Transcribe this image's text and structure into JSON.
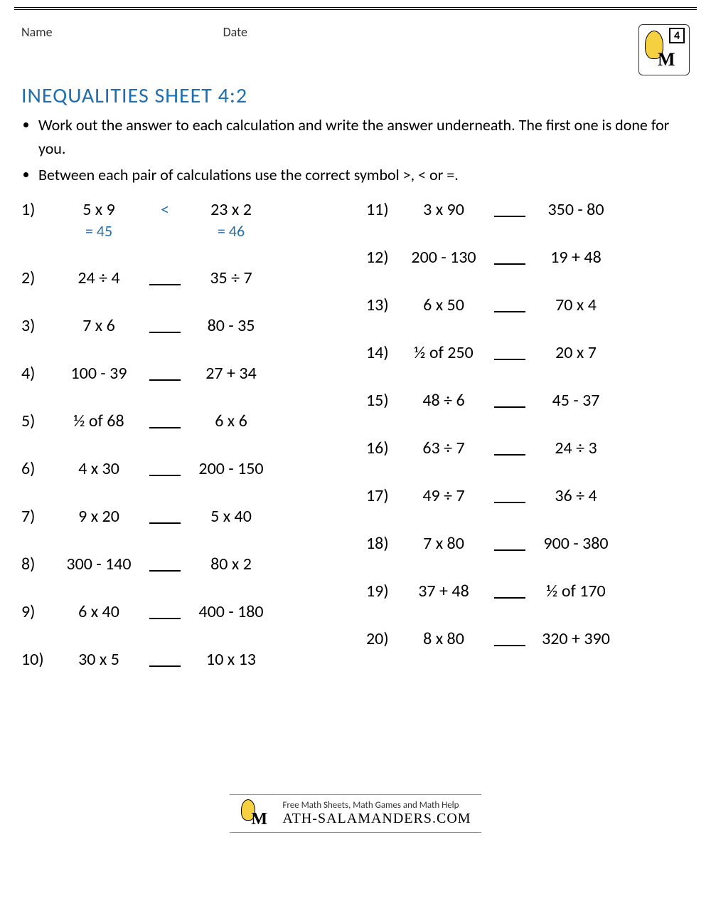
{
  "header": {
    "name_label": "Name",
    "date_label": "Date",
    "grade_badge": "4"
  },
  "title": "INEQUALITIES SHEET 4:2",
  "instructions": [
    "Work out the answer to each calculation and write the answer underneath.  The first one is done for you.",
    "Between each pair of calculations use the correct symbol >, < or =."
  ],
  "colors": {
    "title": "#1f6fb0",
    "answer": "#1f6fb0",
    "text": "#000000"
  },
  "problems_left": [
    {
      "n": "1)",
      "left": "5 x 9",
      "sym": "<",
      "right": "23 x 2",
      "ans_left": "= 45",
      "ans_right": "= 46"
    },
    {
      "n": "2)",
      "left": "24 ÷ 4",
      "sym": "",
      "right": "35 ÷ 7"
    },
    {
      "n": "3)",
      "left": "7 x 6",
      "sym": "",
      "right": "80 - 35"
    },
    {
      "n": "4)",
      "left": "100 - 39",
      "sym": "",
      "right": "27 + 34"
    },
    {
      "n": "5)",
      "left": "½ of 68",
      "sym": "",
      "right": "6 x 6"
    },
    {
      "n": "6)",
      "left": "4 x 30",
      "sym": "",
      "right": "200 - 150"
    },
    {
      "n": "7)",
      "left": "9 x 20",
      "sym": "",
      "right": "5 x 40"
    },
    {
      "n": "8)",
      "left": "300 - 140",
      "sym": "",
      "right": "80 x 2"
    },
    {
      "n": "9)",
      "left": "6 x 40",
      "sym": "",
      "right": "400 - 180"
    },
    {
      "n": "10)",
      "left": "30 x 5",
      "sym": "",
      "right": "10 x 13"
    }
  ],
  "problems_right": [
    {
      "n": "11)",
      "left": "3 x 90",
      "sym": "",
      "right": "350 - 80"
    },
    {
      "n": "12)",
      "left": "200 - 130",
      "sym": "",
      "right": "19 + 48"
    },
    {
      "n": "13)",
      "left": "6 x 50",
      "sym": "",
      "right": "70 x 4"
    },
    {
      "n": "14)",
      "left": "½ of 250",
      "sym": "",
      "right": "20 x 7"
    },
    {
      "n": "15)",
      "left": "48 ÷ 6",
      "sym": "",
      "right": "45 - 37"
    },
    {
      "n": "16)",
      "left": "63 ÷ 7",
      "sym": "",
      "right": "24 ÷ 3"
    },
    {
      "n": "17)",
      "left": "49 ÷ 7",
      "sym": "",
      "right": "36 ÷ 4"
    },
    {
      "n": "18)",
      "left": "7 x 80",
      "sym": "",
      "right": "900 - 380"
    },
    {
      "n": "19)",
      "left": "37 + 48",
      "sym": "",
      "right": "½ of 170"
    },
    {
      "n": "20)",
      "left": "8 x 80",
      "sym": "",
      "right": "320 + 390"
    }
  ],
  "footer": {
    "tagline": "Free Math Sheets, Math Games and Math Help",
    "site": "ATH-SALAMANDERS.COM"
  }
}
